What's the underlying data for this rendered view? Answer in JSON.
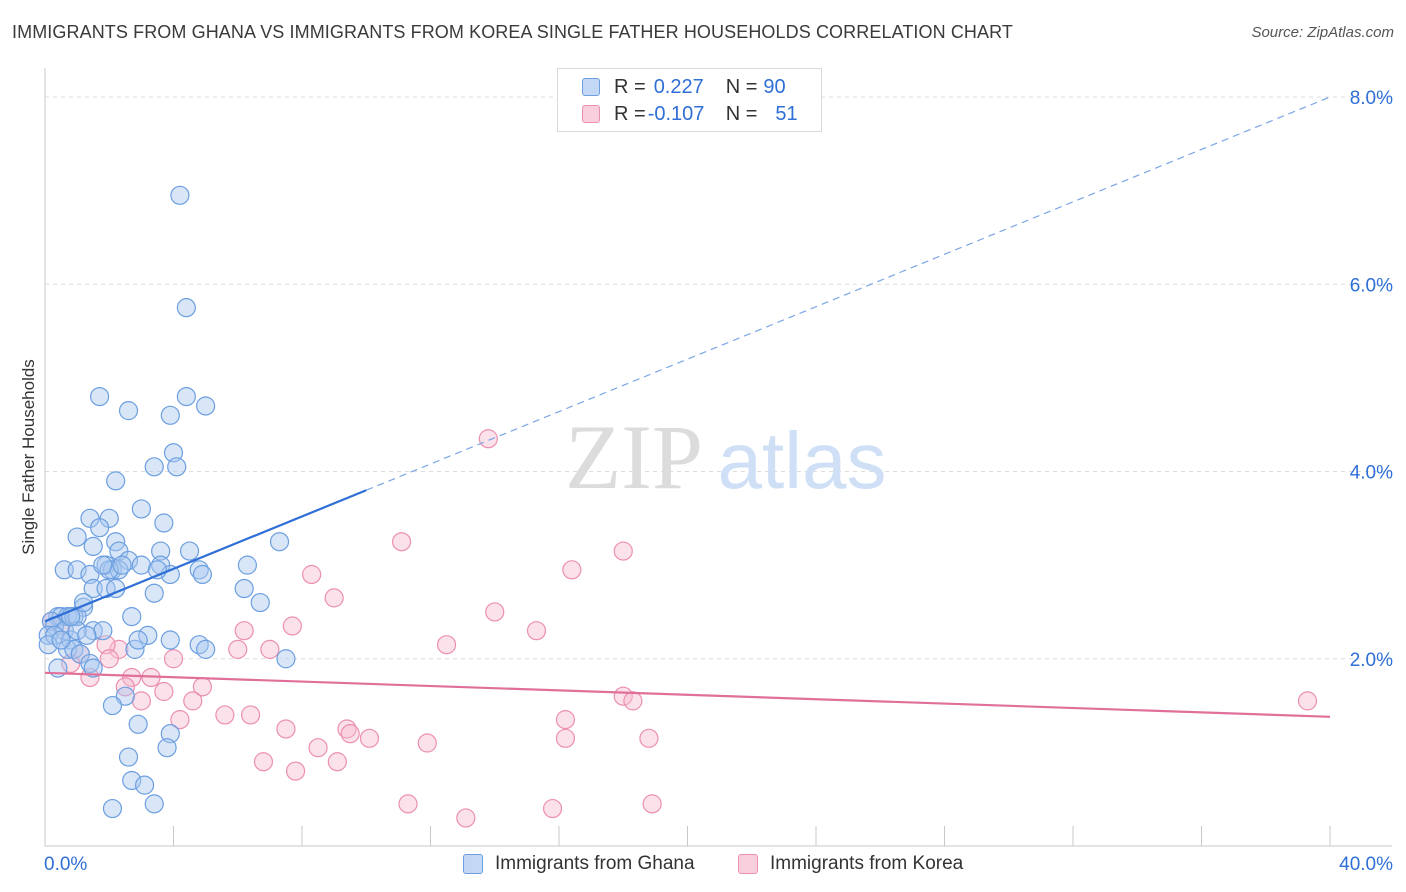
{
  "title": "IMMIGRANTS FROM GHANA VS IMMIGRANTS FROM KOREA SINGLE FATHER HOUSEHOLDS CORRELATION CHART",
  "source": "Source: ZipAtlas.com",
  "watermark": {
    "part1": "ZIP",
    "part2": "atlas"
  },
  "legend_top": {
    "rows": [
      {
        "r_label": "R = ",
        "r_value": "0.227",
        "n_label": "N = ",
        "n_value": "90"
      },
      {
        "r_label": "R = ",
        "r_value": "-0.107",
        "n_label": "N = ",
        "n_value": "51"
      }
    ]
  },
  "legend_bottom": [
    {
      "label": "Immigrants from Ghana"
    },
    {
      "label": "Immigrants from Korea"
    }
  ],
  "colors": {
    "ghana_fill": "#a9c8f0",
    "ghana_stroke": "#6c9fe0",
    "ghana_line": "#2f6fd6",
    "korea_fill": "#f7bcd0",
    "korea_stroke": "#ec8fb0",
    "korea_line": "#e0709a",
    "axis_label": "#2f6fd6",
    "grid": "#dddddd"
  },
  "chart_data": {
    "type": "scatter",
    "ylabel": "Single Father Households",
    "xlabel": "",
    "xlim": [
      0,
      40
    ],
    "ylim": [
      0,
      8
    ],
    "x_tick_labels": [
      {
        "value": 0,
        "label": "0.0%"
      },
      {
        "value": 40,
        "label": "40.0%"
      }
    ],
    "y_tick_labels": [
      {
        "value": 2,
        "label": "2.0%"
      },
      {
        "value": 4,
        "label": "4.0%"
      },
      {
        "value": 6,
        "label": "6.0%"
      },
      {
        "value": 8,
        "label": "8.0%"
      }
    ],
    "series": [
      {
        "name": "Immigrants from Ghana",
        "r": 0.227,
        "n": 90,
        "trend": {
          "x": [
            0,
            10
          ],
          "y": [
            2.4,
            3.8
          ],
          "extended_x": [
            10,
            40
          ],
          "extended_y": [
            3.8,
            8.0
          ]
        },
        "points": [
          [
            4.2,
            6.95
          ],
          [
            4.4,
            5.75
          ],
          [
            1.7,
            4.8
          ],
          [
            4.4,
            4.8
          ],
          [
            2.6,
            4.65
          ],
          [
            5.0,
            4.7
          ],
          [
            3.9,
            4.6
          ],
          [
            4.0,
            4.2
          ],
          [
            3.4,
            4.05
          ],
          [
            4.1,
            4.05
          ],
          [
            2.2,
            3.9
          ],
          [
            3.0,
            3.6
          ],
          [
            1.4,
            3.5
          ],
          [
            2.0,
            3.5
          ],
          [
            3.7,
            3.45
          ],
          [
            1.7,
            3.4
          ],
          [
            1.0,
            3.3
          ],
          [
            2.2,
            3.25
          ],
          [
            1.5,
            3.2
          ],
          [
            2.3,
            3.15
          ],
          [
            3.6,
            3.15
          ],
          [
            7.3,
            3.25
          ],
          [
            2.6,
            3.05
          ],
          [
            1.9,
            3.0
          ],
          [
            3.0,
            3.0
          ],
          [
            3.6,
            3.0
          ],
          [
            2.1,
            2.95
          ],
          [
            6.3,
            3.0
          ],
          [
            0.6,
            2.95
          ],
          [
            1.0,
            2.95
          ],
          [
            1.4,
            2.9
          ],
          [
            2.3,
            2.95
          ],
          [
            3.9,
            2.9
          ],
          [
            4.8,
            2.95
          ],
          [
            4.9,
            2.9
          ],
          [
            1.5,
            2.75
          ],
          [
            1.9,
            2.75
          ],
          [
            2.2,
            2.75
          ],
          [
            6.2,
            2.75
          ],
          [
            3.4,
            2.7
          ],
          [
            6.7,
            2.6
          ],
          [
            1.2,
            2.55
          ],
          [
            0.4,
            2.45
          ],
          [
            0.5,
            2.45
          ],
          [
            0.7,
            2.45
          ],
          [
            0.9,
            2.45
          ],
          [
            1.0,
            2.45
          ],
          [
            2.7,
            2.45
          ],
          [
            0.2,
            2.4
          ],
          [
            0.3,
            2.35
          ],
          [
            0.6,
            2.3
          ],
          [
            0.1,
            2.25
          ],
          [
            0.3,
            2.25
          ],
          [
            1.5,
            2.3
          ],
          [
            1.8,
            2.3
          ],
          [
            0.8,
            2.2
          ],
          [
            3.2,
            2.25
          ],
          [
            3.9,
            2.2
          ],
          [
            0.1,
            2.15
          ],
          [
            0.7,
            2.1
          ],
          [
            0.9,
            2.1
          ],
          [
            1.1,
            2.05
          ],
          [
            4.8,
            2.15
          ],
          [
            5.0,
            2.1
          ],
          [
            7.5,
            2.0
          ],
          [
            1.4,
            1.95
          ],
          [
            1.5,
            1.9
          ],
          [
            0.4,
            1.9
          ],
          [
            2.8,
            2.1
          ],
          [
            2.5,
            1.6
          ],
          [
            2.1,
            1.5
          ],
          [
            2.9,
            1.3
          ],
          [
            3.9,
            1.2
          ],
          [
            3.8,
            1.05
          ],
          [
            2.6,
            0.95
          ],
          [
            2.7,
            0.7
          ],
          [
            3.1,
            0.65
          ],
          [
            3.4,
            0.45
          ],
          [
            2.1,
            0.4
          ],
          [
            1.0,
            2.3
          ],
          [
            1.2,
            2.6
          ],
          [
            0.5,
            2.2
          ],
          [
            2.0,
            2.95
          ],
          [
            1.8,
            3.0
          ],
          [
            3.5,
            2.95
          ],
          [
            2.4,
            3.0
          ],
          [
            0.8,
            2.45
          ],
          [
            1.3,
            2.25
          ],
          [
            2.9,
            2.2
          ],
          [
            4.5,
            3.15
          ]
        ]
      },
      {
        "name": "Immigrants from Korea",
        "r": -0.107,
        "n": 51,
        "trend": {
          "x": [
            0,
            40
          ],
          "y": [
            1.85,
            1.38
          ]
        },
        "points": [
          [
            13.8,
            4.35
          ],
          [
            11.1,
            3.25
          ],
          [
            16.4,
            2.95
          ],
          [
            18.0,
            3.15
          ],
          [
            8.3,
            2.9
          ],
          [
            9.0,
            2.65
          ],
          [
            14.0,
            2.5
          ],
          [
            15.3,
            2.3
          ],
          [
            7.7,
            2.35
          ],
          [
            6.2,
            2.3
          ],
          [
            12.5,
            2.15
          ],
          [
            6.0,
            2.1
          ],
          [
            7.0,
            2.1
          ],
          [
            2.3,
            2.1
          ],
          [
            1.9,
            2.15
          ],
          [
            1.1,
            2.05
          ],
          [
            0.8,
            1.95
          ],
          [
            2.0,
            2.0
          ],
          [
            4.0,
            2.0
          ],
          [
            0.2,
            2.4
          ],
          [
            0.5,
            2.35
          ],
          [
            1.4,
            1.8
          ],
          [
            2.7,
            1.8
          ],
          [
            3.3,
            1.8
          ],
          [
            2.5,
            1.7
          ],
          [
            4.9,
            1.7
          ],
          [
            3.0,
            1.55
          ],
          [
            3.7,
            1.65
          ],
          [
            4.6,
            1.55
          ],
          [
            18.0,
            1.6
          ],
          [
            18.3,
            1.55
          ],
          [
            39.3,
            1.55
          ],
          [
            4.2,
            1.35
          ],
          [
            5.6,
            1.4
          ],
          [
            6.4,
            1.4
          ],
          [
            7.5,
            1.25
          ],
          [
            9.4,
            1.25
          ],
          [
            9.5,
            1.2
          ],
          [
            10.1,
            1.15
          ],
          [
            11.9,
            1.1
          ],
          [
            8.5,
            1.05
          ],
          [
            16.2,
            1.35
          ],
          [
            16.2,
            1.15
          ],
          [
            18.8,
            1.15
          ],
          [
            6.8,
            0.9
          ],
          [
            7.8,
            0.8
          ],
          [
            9.1,
            0.9
          ],
          [
            11.3,
            0.45
          ],
          [
            13.1,
            0.3
          ],
          [
            15.8,
            0.4
          ],
          [
            18.9,
            0.45
          ]
        ]
      }
    ]
  }
}
